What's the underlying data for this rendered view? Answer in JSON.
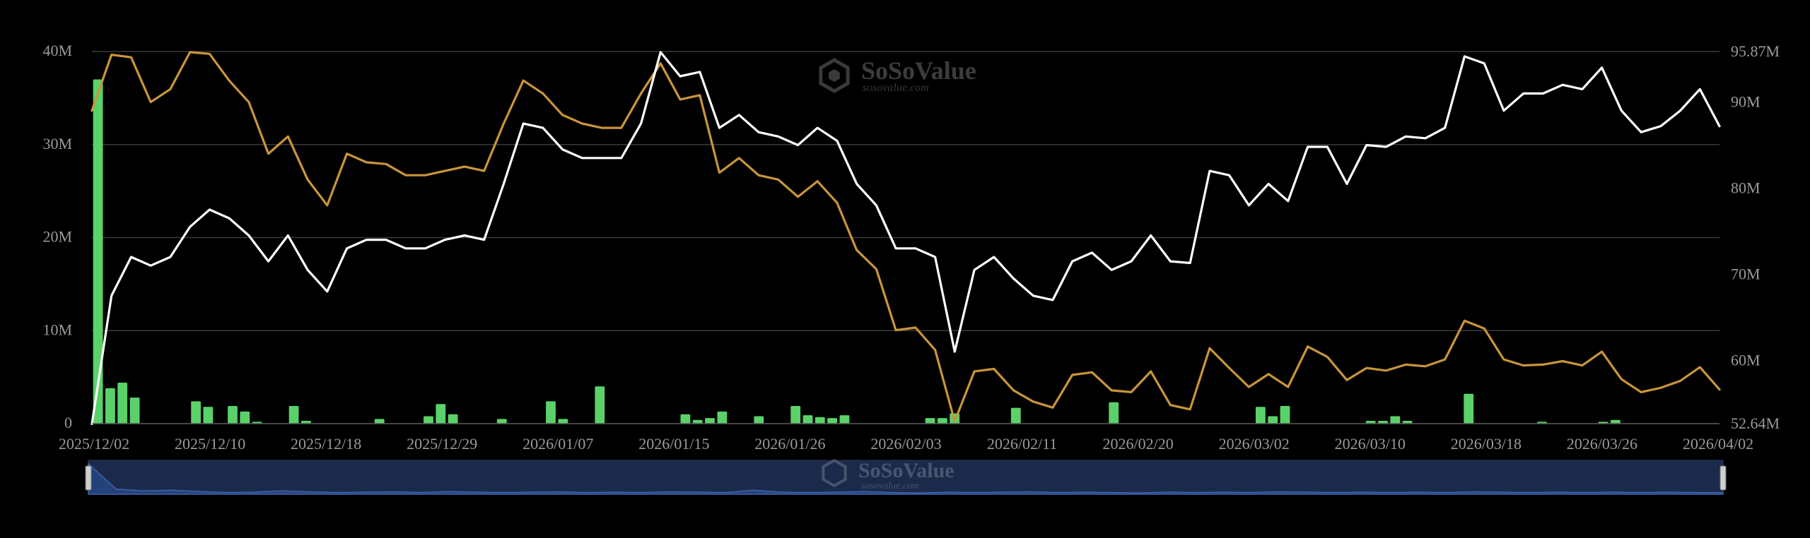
{
  "watermark": {
    "brand": "SoSoValue",
    "site": "sosovalue.com"
  },
  "colors": {
    "background": "#000000",
    "bars": "#5bd16a",
    "white_line": "#ffffff",
    "gold_line": "#c9953a",
    "grid": "#3a3a3a",
    "axis_text": "#9a9a9a",
    "navigator_fill": "#1b2a4a",
    "navigator_line": "#3f64b0"
  },
  "chart_data": {
    "type": "bar+line",
    "x_tick_labels": [
      "2025/12/02",
      "2025/12/10",
      "2025/12/18",
      "2025/12/29",
      "2026/01/07",
      "2026/01/15",
      "2026/01/26",
      "2026/02/03",
      "2026/02/11",
      "2026/02/20",
      "2026/03/02",
      "2026/03/10",
      "2026/03/18",
      "2026/03/26",
      "2026/04/02"
    ],
    "left_axis": {
      "ticks": [
        "0",
        "10M",
        "20M",
        "30M",
        "40M"
      ],
      "range": [
        0,
        40
      ]
    },
    "right_axis": {
      "ticks": [
        "52.64M",
        "60M",
        "70M",
        "80M",
        "90M",
        "95.87M"
      ],
      "range": [
        52.64,
        95.87
      ]
    },
    "grid": true,
    "series": [
      {
        "kind": "bar",
        "axis": "left",
        "values": [
          37,
          3.8,
          4.4,
          2.8,
          0,
          0,
          0,
          0,
          2.4,
          1.8,
          0,
          1.9,
          1.3,
          0.2,
          0,
          0,
          1.9,
          0.3,
          0,
          0,
          0,
          0,
          0,
          0.5,
          0,
          0,
          0,
          0.8,
          2.1,
          1.0,
          0,
          0,
          0,
          0.5,
          0,
          0,
          0,
          2.4,
          0.5,
          0,
          0,
          4.0,
          0,
          0,
          0,
          0,
          0,
          0,
          1.0,
          0.4,
          0.6,
          1.3,
          0,
          0,
          0.8,
          0,
          0,
          1.9,
          0.9,
          0.7,
          0.6,
          0.9,
          0,
          0,
          0,
          0,
          0,
          0,
          0.6,
          0.6,
          1.1,
          0,
          0,
          0,
          0,
          1.7,
          0,
          0,
          0,
          0,
          0,
          0,
          0,
          2.3,
          0,
          0,
          0,
          0,
          0,
          0,
          0,
          0,
          0,
          0,
          0,
          1.8,
          0.8,
          1.9,
          0,
          0,
          0,
          0,
          0,
          0,
          0.3,
          0.3,
          0.8,
          0.3,
          0,
          0,
          0,
          0,
          3.2,
          0,
          0,
          0,
          0,
          0,
          0.2,
          0,
          0,
          0,
          0,
          0.2,
          0.4,
          0,
          0,
          0,
          0,
          0,
          0,
          0,
          0
        ]
      },
      {
        "kind": "line",
        "color": "white",
        "axis": "right",
        "values": [
          52.6,
          67.5,
          72,
          71,
          72,
          75.5,
          77.5,
          76.5,
          74.5,
          71.5,
          74.5,
          70.5,
          68,
          73,
          74,
          74,
          73,
          73,
          74,
          74.5,
          74,
          80.5,
          87.5,
          87,
          84.5,
          83.5,
          83.5,
          83.5,
          87.5,
          95.8,
          93,
          93.5,
          87,
          88.5,
          86.5,
          86,
          85,
          87,
          85.5,
          80.5,
          78,
          73,
          73,
          72,
          61,
          70.5,
          72,
          69.5,
          67.5,
          67,
          71.5,
          72.5,
          70.5,
          71.5,
          74.5,
          71.5,
          71.3,
          82,
          81.5,
          78,
          80.5,
          78.5,
          84.8,
          84.8,
          80.5,
          85,
          84.8,
          86,
          85.8,
          87,
          95.3,
          94.5,
          89,
          91,
          91,
          92,
          91.5,
          94,
          89,
          86.5,
          87.2,
          89,
          91.5,
          87.2
        ]
      },
      {
        "kind": "line",
        "color": "gold",
        "axis": "right",
        "values": [
          89,
          95.5,
          95.2,
          90,
          91.5,
          95.8,
          95.6,
          92.5,
          90,
          84,
          86,
          81,
          78,
          84,
          83,
          82.8,
          81.5,
          81.5,
          82,
          82.5,
          82,
          87.5,
          92.5,
          91,
          88.5,
          87.5,
          87,
          87,
          91,
          94.5,
          90.3,
          90.8,
          81.8,
          83.5,
          81.5,
          81,
          79,
          80.8,
          78.3,
          72.8,
          70.6,
          63.5,
          63.8,
          61.2,
          52.9,
          58.7,
          59,
          56.5,
          55.2,
          54.5,
          58.3,
          58.6,
          56.5,
          56.3,
          58.7,
          54.8,
          54.3,
          61.4,
          59.1,
          56.9,
          58.4,
          56.9,
          61.6,
          60.4,
          57.7,
          59.1,
          58.8,
          59.5,
          59.3,
          60.1,
          64.6,
          63.7,
          60.1,
          59.4,
          59.5,
          59.9,
          59.4,
          61.0,
          57.8,
          56.3,
          56.8,
          57.6,
          59.2,
          56.6
        ]
      }
    ],
    "navigator": {
      "series": [
        0.9,
        0.15,
        0.1,
        0.12,
        0.08,
        0.05,
        0.06,
        0.1,
        0.07,
        0.05,
        0.06,
        0.07,
        0.05,
        0.08,
        0.06,
        0.05,
        0.06,
        0.07,
        0.05,
        0.06,
        0.05,
        0.07,
        0.06,
        0.05,
        0.12,
        0.06,
        0.05,
        0.06,
        0.08,
        0.05,
        0.04,
        0.06,
        0.05,
        0.06,
        0.07,
        0.05,
        0.06,
        0.05,
        0.04,
        0.06,
        0.05,
        0.06,
        0.05,
        0.07,
        0.06,
        0.05,
        0.06,
        0.05,
        0.06,
        0.05,
        0.07,
        0.06,
        0.05,
        0.06,
        0.05,
        0.06,
        0.05,
        0.06,
        0.05,
        0.05
      ]
    }
  }
}
